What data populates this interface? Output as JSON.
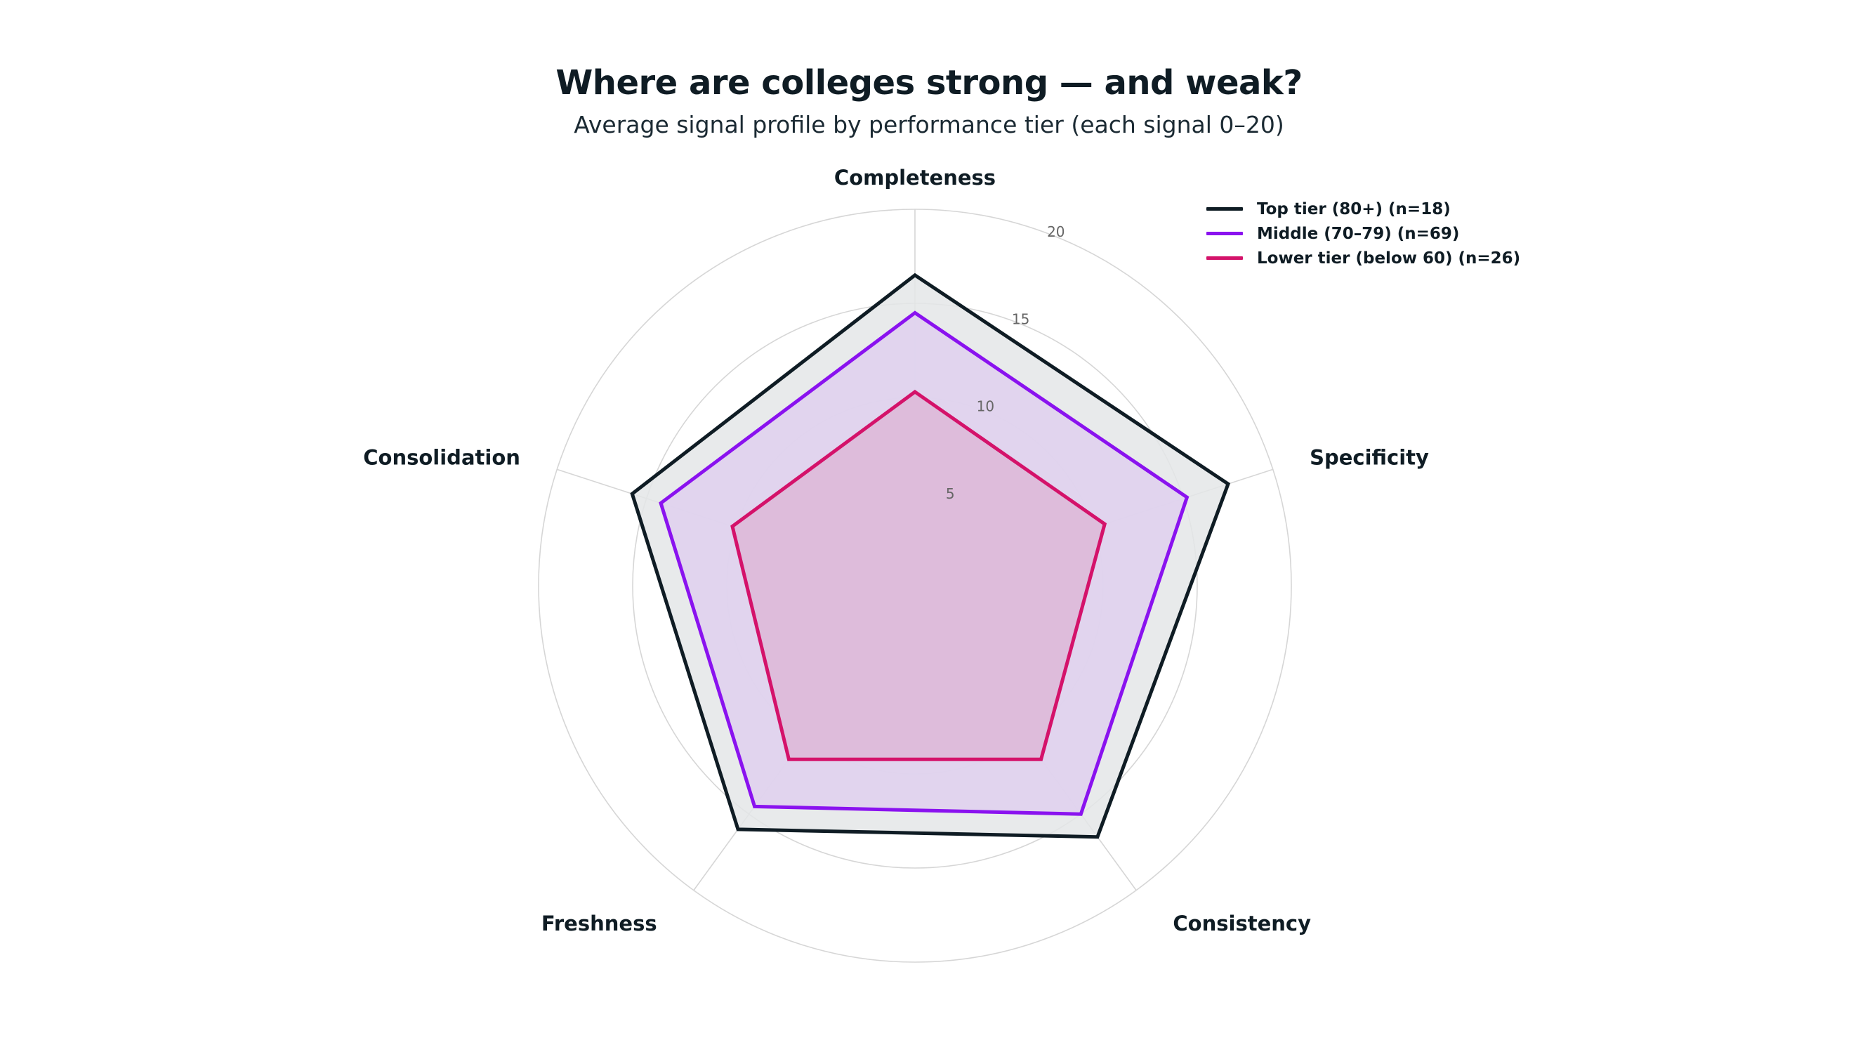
{
  "title": "Where are colleges strong — and weak?",
  "subtitle": "Average signal profile by performance tier (each signal 0–20)",
  "chart_data": {
    "type": "radar",
    "axes": [
      "Completeness",
      "Specificity",
      "Consistency",
      "Freshness",
      "Consolidation"
    ],
    "range": [
      0,
      20
    ],
    "ticks": [
      5,
      10,
      15,
      20
    ],
    "grid": true,
    "legend_position": "top-right",
    "series": [
      {
        "name": "Top tier (80+) (n=18)",
        "color": "#0f1c24",
        "fill": "#e4e6e7",
        "values": [
          16.5,
          17.5,
          16.5,
          16.0,
          15.8
        ]
      },
      {
        "name": "Middle (70–79) (n=69)",
        "color": "#8a12ef",
        "fill": "#dfd0ee",
        "values": [
          14.5,
          15.2,
          15.0,
          14.5,
          14.2
        ]
      },
      {
        "name": "Lower tier (below 60) (n=26)",
        "color": "#d4126a",
        "fill": "#ddb7d7",
        "values": [
          10.3,
          10.6,
          11.4,
          11.4,
          10.2
        ]
      }
    ]
  }
}
